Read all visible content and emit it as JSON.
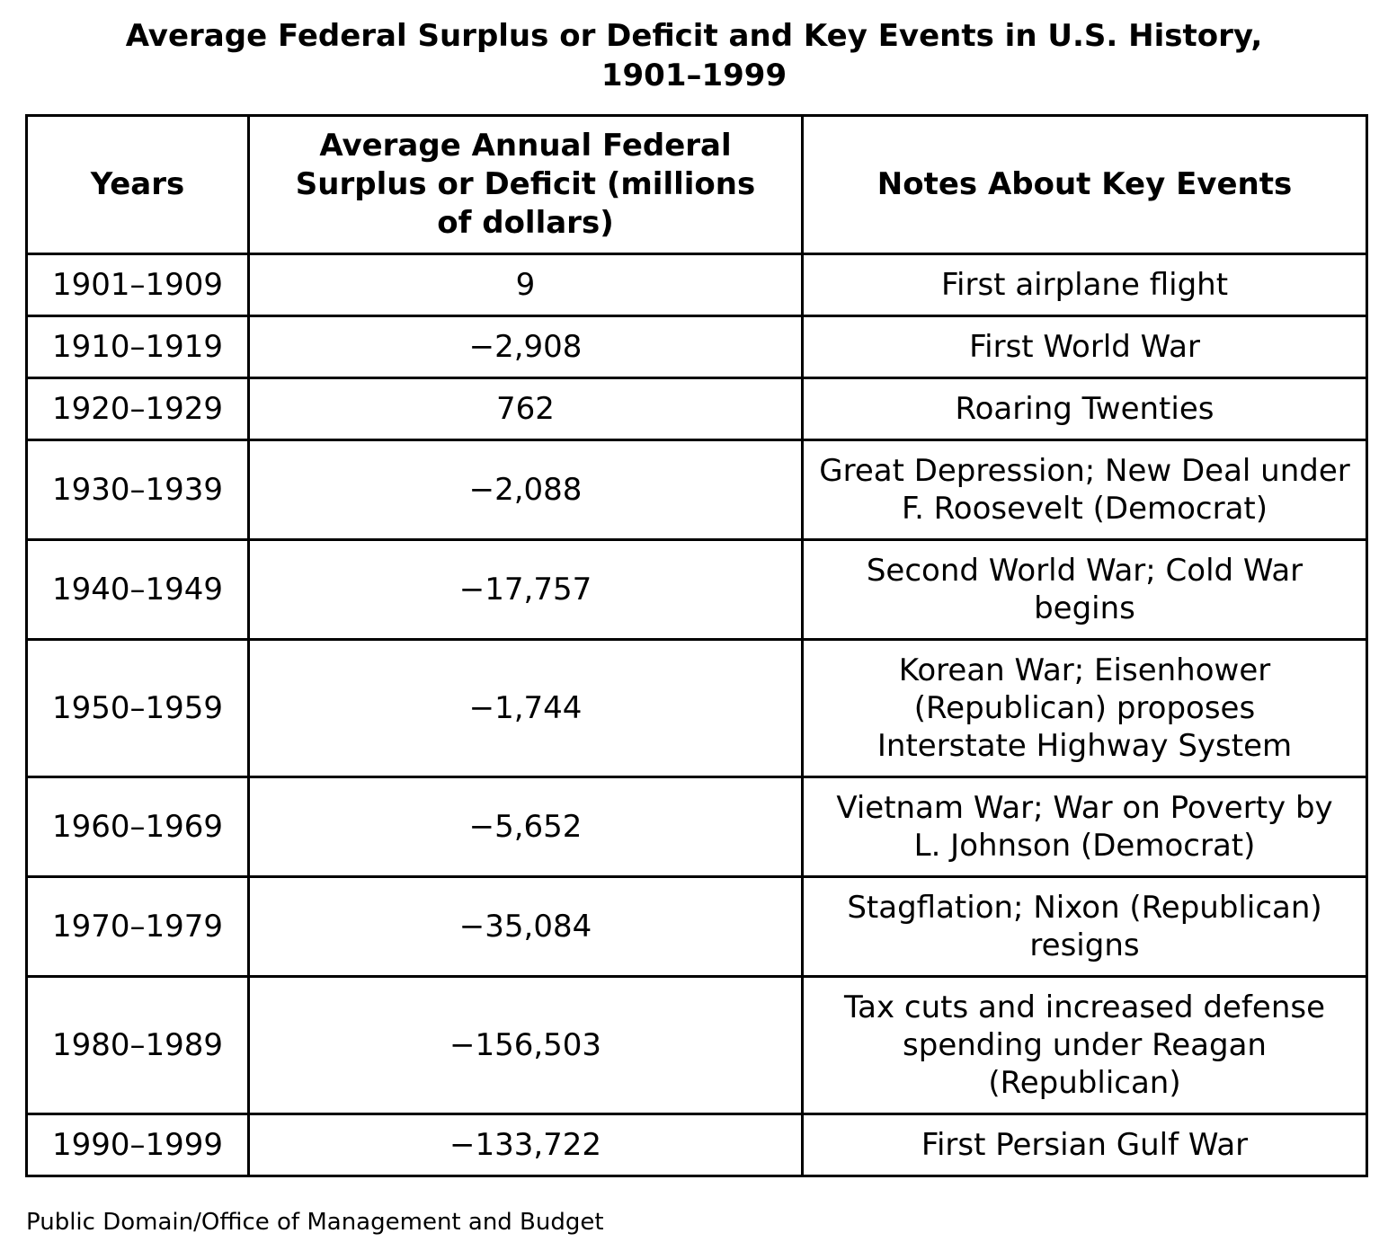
{
  "title": {
    "line1": "Average Federal Surplus or Deficit and Key Events in U.S. History,",
    "line2": "1901–1999"
  },
  "table": {
    "headers": [
      "Years",
      "Average Annual Federal Surplus or Deficit (millions of dollars)",
      "Notes About Key Events"
    ],
    "rows": [
      {
        "years": "1901–1909",
        "value": "9",
        "notes": "First airplane flight"
      },
      {
        "years": "1910–1919",
        "value": "−2,908",
        "notes": "First World War"
      },
      {
        "years": "1920–1929",
        "value": "762",
        "notes": "Roaring Twenties"
      },
      {
        "years": "1930–1939",
        "value": "−2,088",
        "notes": "Great Depression; New Deal under F. Roosevelt (Democrat)"
      },
      {
        "years": "1940–1949",
        "value": "−17,757",
        "notes": "Second World War; Cold War begins"
      },
      {
        "years": "1950–1959",
        "value": "−1,744",
        "notes": "Korean War; Eisenhower (Republican) proposes Interstate Highway System"
      },
      {
        "years": "1960–1969",
        "value": "−5,652",
        "notes": "Vietnam War; War on Poverty by L. Johnson (Democrat)"
      },
      {
        "years": "1970–1979",
        "value": "−35,084",
        "notes": "Stagflation; Nixon (Republican) resigns"
      },
      {
        "years": "1980–1989",
        "value": "−156,503",
        "notes": "Tax cuts and increased defense spending under Reagan (Republican)"
      },
      {
        "years": "1990–1999",
        "value": "−133,722",
        "notes": "First Persian Gulf War"
      }
    ]
  },
  "source": "Public Domain/Office of Management and Budget"
}
